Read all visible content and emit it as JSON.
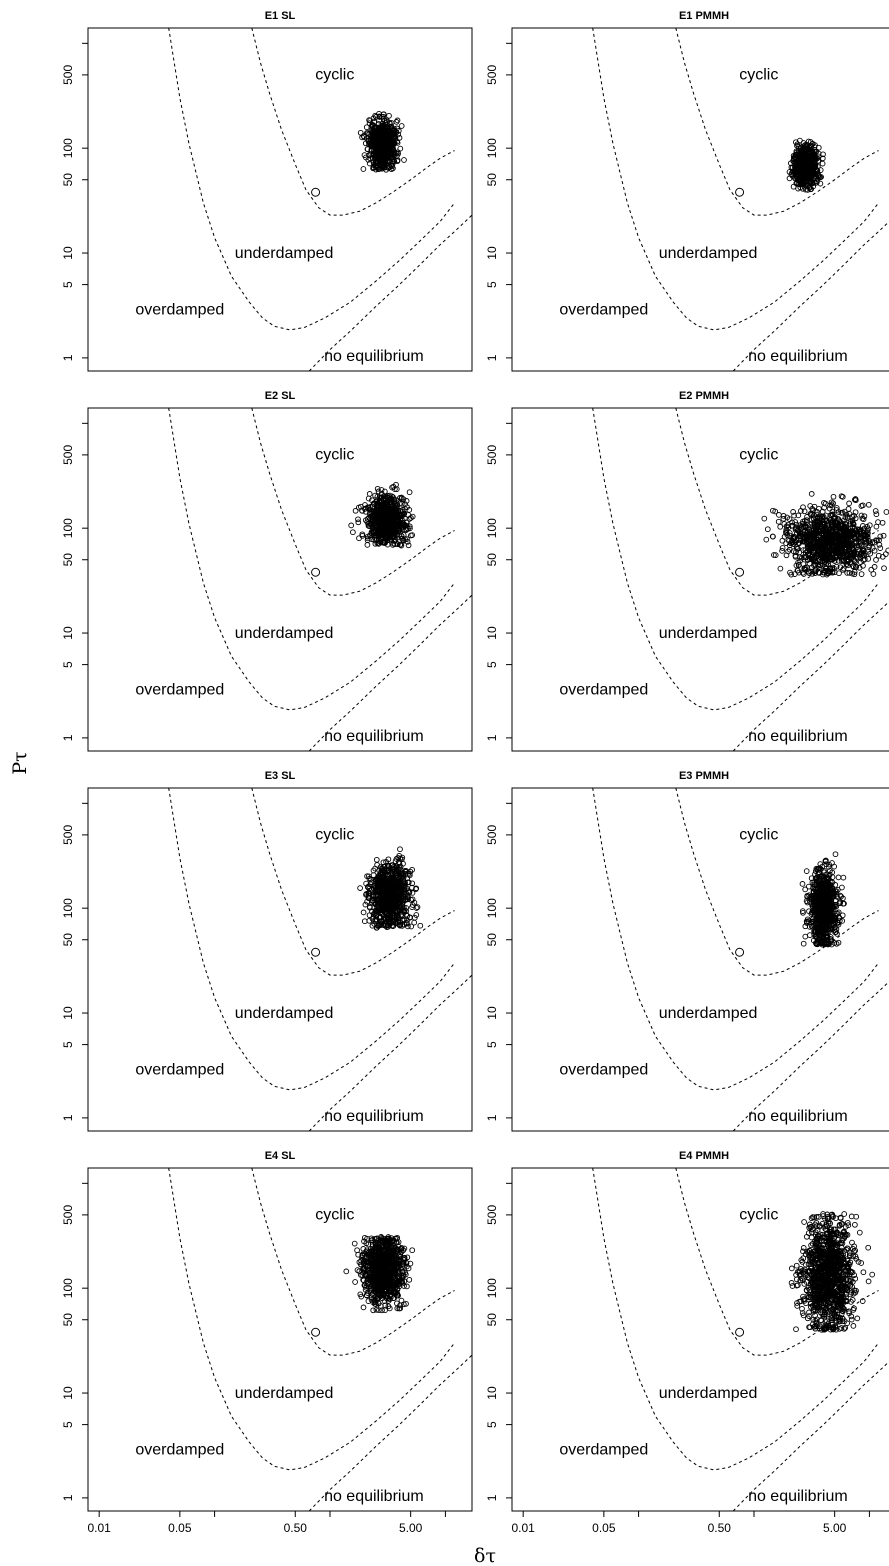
{
  "figure": {
    "xlabel": "δτ",
    "ylabel": "Pτ"
  },
  "chart_data": {
    "type": "scatter",
    "x_scale": "log",
    "y_scale": "log",
    "xlim": [
      0.008,
      17
    ],
    "ylim": [
      0.75,
      1400
    ],
    "x_ticks": [
      {
        "value": 0.01,
        "label": "0.01"
      },
      {
        "value": 0.05,
        "label": "0.05"
      },
      {
        "value": 0.1,
        "label": ""
      },
      {
        "value": 0.5,
        "label": "0.50"
      },
      {
        "value": 1,
        "label": ""
      },
      {
        "value": 5,
        "label": "5.00"
      },
      {
        "value": 10,
        "label": ""
      }
    ],
    "y_ticks": [
      {
        "value": 1,
        "label": "1"
      },
      {
        "value": 5,
        "label": "5"
      },
      {
        "value": 10,
        "label": "10"
      },
      {
        "value": 50,
        "label": "50"
      },
      {
        "value": 100,
        "label": "100"
      },
      {
        "value": 500,
        "label": "500"
      },
      {
        "value": 1000,
        "label": ""
      }
    ],
    "regions": {
      "cyclic": {
        "text": "cyclic",
        "x": 1.1,
        "y": 450
      },
      "underdamped": {
        "text": "underdamped",
        "x": 0.4,
        "y": 9
      },
      "overdamped": {
        "text": "overdamped",
        "x": 0.05,
        "y": 2.6
      },
      "no_equilibrium": {
        "text": "no equilibrium",
        "x": 2.4,
        "y": 0.93
      }
    },
    "boundary_curves": [
      {
        "x": [
          0.04,
          0.05,
          0.06,
          0.08,
          0.1,
          0.14,
          0.2,
          0.26,
          0.33,
          0.45,
          0.6,
          0.9,
          1.5,
          2.5,
          4,
          6,
          9,
          12
        ],
        "y": [
          1400,
          300,
          110,
          30,
          14,
          6,
          3.4,
          2.4,
          2.0,
          1.85,
          1.95,
          2.4,
          3.4,
          5.4,
          8.5,
          13,
          20,
          30
        ]
      },
      {
        "x": [
          0.21,
          0.25,
          0.3,
          0.38,
          0.5,
          0.62,
          0.8,
          1.0,
          1.3,
          1.8,
          2.5,
          3.5,
          5,
          7,
          9,
          12
        ],
        "y": [
          1400,
          650,
          330,
          150,
          70,
          40,
          27,
          23,
          23,
          25,
          30,
          38,
          50,
          66,
          80,
          95
        ]
      },
      {
        "x": [
          0.66,
          1.0,
          1.5,
          2.5,
          4,
          6,
          9,
          12,
          17
        ],
        "y": [
          0.75,
          1.2,
          1.8,
          3.1,
          5.0,
          7.7,
          12,
          16,
          23
        ]
      }
    ],
    "panels": [
      {
        "title": "E1 SL",
        "reference_point": {
          "x": 0.75,
          "y": 38
        },
        "cloud": {
          "center_x": 2.85,
          "center_y": 110,
          "spread_x_log": 0.06,
          "spread_y_log": 0.12,
          "min_y": 62,
          "max_y": 230,
          "n": 650
        }
      },
      {
        "title": "E1 PMMH",
        "reference_point": {
          "x": 0.75,
          "y": 38
        },
        "cloud": {
          "center_x": 2.8,
          "center_y": 68,
          "spread_x_log": 0.05,
          "spread_y_log": 0.1,
          "min_y": 40,
          "max_y": 170,
          "n": 600
        }
      },
      {
        "title": "E2 SL",
        "reference_point": {
          "x": 0.75,
          "y": 38
        },
        "cloud": {
          "center_x": 3.1,
          "center_y": 120,
          "spread_x_log": 0.085,
          "spread_y_log": 0.11,
          "min_y": 68,
          "max_y": 260,
          "n": 750
        }
      },
      {
        "title": "E2 PMMH",
        "reference_point": {
          "x": 0.75,
          "y": 38
        },
        "cloud": {
          "center_x": 4.6,
          "center_y": 75,
          "spread_x_log": 0.19,
          "spread_y_log": 0.16,
          "min_y": 36,
          "max_y": 380,
          "n": 1000
        }
      },
      {
        "title": "E3 SL",
        "reference_point": {
          "x": 0.75,
          "y": 38
        },
        "cloud": {
          "center_x": 3.35,
          "center_y": 135,
          "spread_x_log": 0.09,
          "spread_y_log": 0.15,
          "min_y": 65,
          "max_y": 380,
          "n": 800
        }
      },
      {
        "title": "E3 PMMH",
        "reference_point": {
          "x": 0.75,
          "y": 38
        },
        "cloud": {
          "center_x": 4.0,
          "center_y": 105,
          "spread_x_log": 0.06,
          "spread_y_log": 0.18,
          "min_y": 45,
          "max_y": 360,
          "n": 800
        }
      },
      {
        "title": "E4 SL",
        "reference_point": {
          "x": 0.75,
          "y": 38
        },
        "cloud": {
          "center_x": 2.9,
          "center_y": 150,
          "spread_x_log": 0.09,
          "spread_y_log": 0.16,
          "min_y": 60,
          "max_y": 310,
          "n": 900
        }
      },
      {
        "title": "E4 PMMH",
        "reference_point": {
          "x": 0.75,
          "y": 38
        },
        "cloud": {
          "center_x": 4.4,
          "center_y": 135,
          "spread_x_log": 0.11,
          "spread_y_log": 0.25,
          "min_y": 40,
          "max_y": 510,
          "n": 1100
        }
      }
    ]
  }
}
